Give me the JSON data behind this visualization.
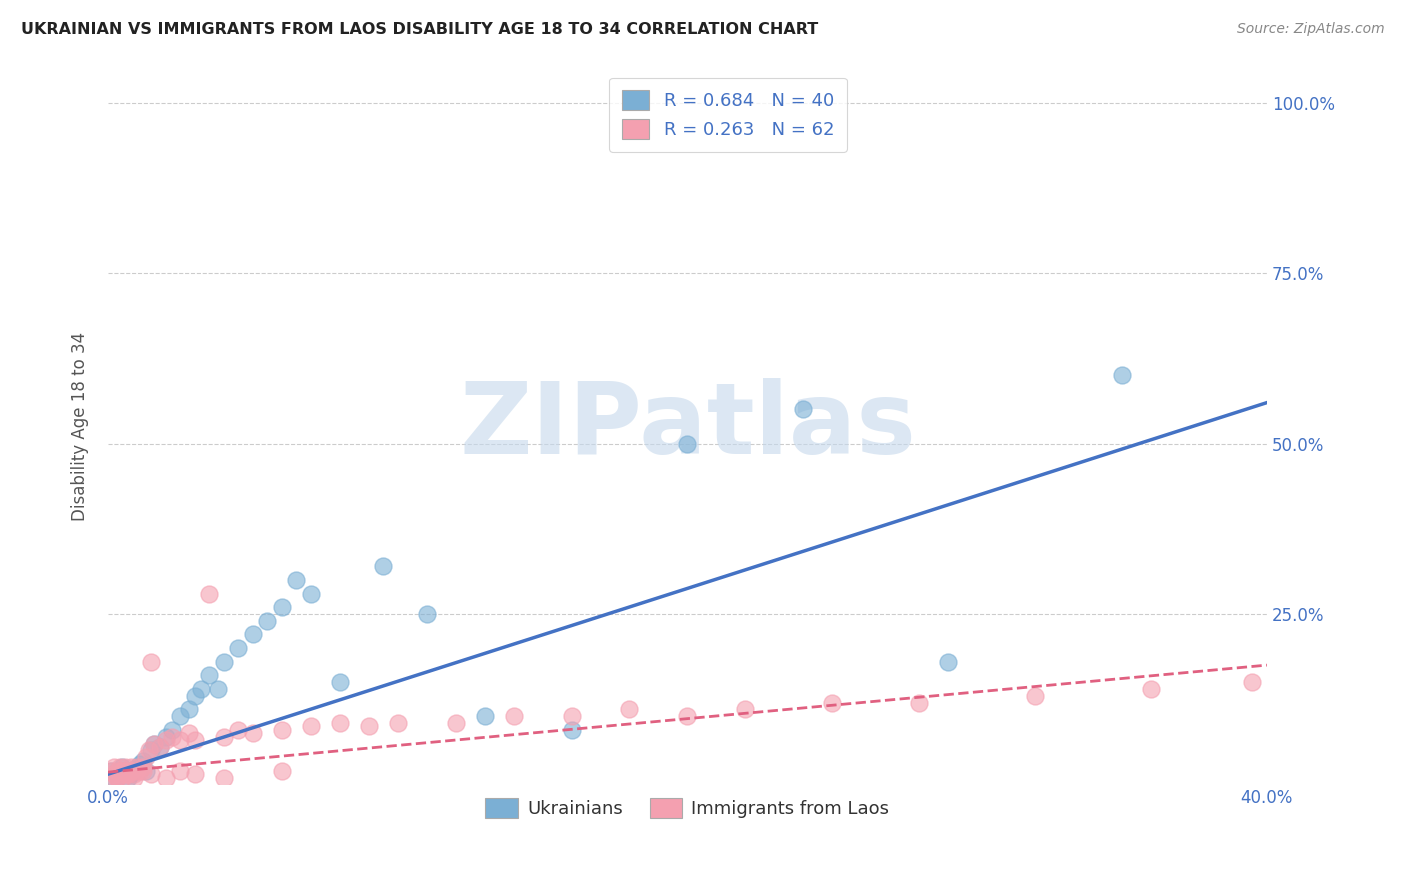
{
  "title": "UKRAINIAN VS IMMIGRANTS FROM LAOS DISABILITY AGE 18 TO 34 CORRELATION CHART",
  "source": "Source: ZipAtlas.com",
  "ylabel": "Disability Age 18 to 34",
  "xlim": [
    0.0,
    0.4
  ],
  "ylim": [
    0.0,
    1.05
  ],
  "xticks": [
    0.0,
    0.1,
    0.2,
    0.3,
    0.4
  ],
  "xtick_labels": [
    "0.0%",
    "",
    "",
    "",
    "40.0%"
  ],
  "ytick_labels_right": [
    "",
    "25.0%",
    "50.0%",
    "75.0%",
    "100.0%"
  ],
  "yticks_right": [
    0.0,
    0.25,
    0.5,
    0.75,
    1.0
  ],
  "blue_color": "#7BAFD4",
  "pink_color": "#F4A0B0",
  "blue_line_color": "#4472C4",
  "pink_line_color": "#E06080",
  "watermark": "ZIPatlas",
  "watermark_color": "#C5D8EC",
  "blue_scatter_x": [
    0.001,
    0.002,
    0.003,
    0.004,
    0.005,
    0.006,
    0.007,
    0.008,
    0.009,
    0.01,
    0.011,
    0.012,
    0.013,
    0.015,
    0.016,
    0.018,
    0.02,
    0.022,
    0.025,
    0.028,
    0.03,
    0.032,
    0.035,
    0.038,
    0.04,
    0.045,
    0.05,
    0.055,
    0.06,
    0.065,
    0.07,
    0.08,
    0.095,
    0.11,
    0.13,
    0.16,
    0.2,
    0.24,
    0.29,
    0.35
  ],
  "blue_scatter_y": [
    0.02,
    0.01,
    0.02,
    0.015,
    0.025,
    0.02,
    0.01,
    0.015,
    0.02,
    0.025,
    0.03,
    0.035,
    0.02,
    0.05,
    0.06,
    0.055,
    0.07,
    0.08,
    0.1,
    0.11,
    0.13,
    0.14,
    0.16,
    0.14,
    0.18,
    0.2,
    0.22,
    0.24,
    0.26,
    0.3,
    0.28,
    0.15,
    0.32,
    0.25,
    0.1,
    0.08,
    0.5,
    0.55,
    0.18,
    0.6
  ],
  "pink_scatter_x": [
    0.001,
    0.001,
    0.002,
    0.002,
    0.003,
    0.003,
    0.004,
    0.004,
    0.005,
    0.005,
    0.006,
    0.006,
    0.007,
    0.007,
    0.008,
    0.008,
    0.009,
    0.01,
    0.01,
    0.011,
    0.012,
    0.013,
    0.014,
    0.015,
    0.016,
    0.018,
    0.02,
    0.022,
    0.025,
    0.028,
    0.03,
    0.035,
    0.04,
    0.045,
    0.05,
    0.06,
    0.07,
    0.08,
    0.09,
    0.1,
    0.12,
    0.14,
    0.16,
    0.18,
    0.2,
    0.22,
    0.25,
    0.28,
    0.32,
    0.36,
    0.395,
    0.003,
    0.005,
    0.007,
    0.009,
    0.012,
    0.015,
    0.02,
    0.025,
    0.03,
    0.04,
    0.06
  ],
  "pink_scatter_y": [
    0.01,
    0.02,
    0.015,
    0.025,
    0.01,
    0.02,
    0.015,
    0.025,
    0.01,
    0.02,
    0.015,
    0.025,
    0.015,
    0.02,
    0.02,
    0.025,
    0.015,
    0.02,
    0.025,
    0.02,
    0.025,
    0.04,
    0.05,
    0.18,
    0.06,
    0.055,
    0.065,
    0.07,
    0.065,
    0.075,
    0.065,
    0.28,
    0.07,
    0.08,
    0.075,
    0.08,
    0.085,
    0.09,
    0.085,
    0.09,
    0.09,
    0.1,
    0.1,
    0.11,
    0.1,
    0.11,
    0.12,
    0.12,
    0.13,
    0.14,
    0.15,
    0.01,
    0.02,
    0.015,
    0.01,
    0.02,
    0.015,
    0.01,
    0.02,
    0.015,
    0.01,
    0.02
  ]
}
